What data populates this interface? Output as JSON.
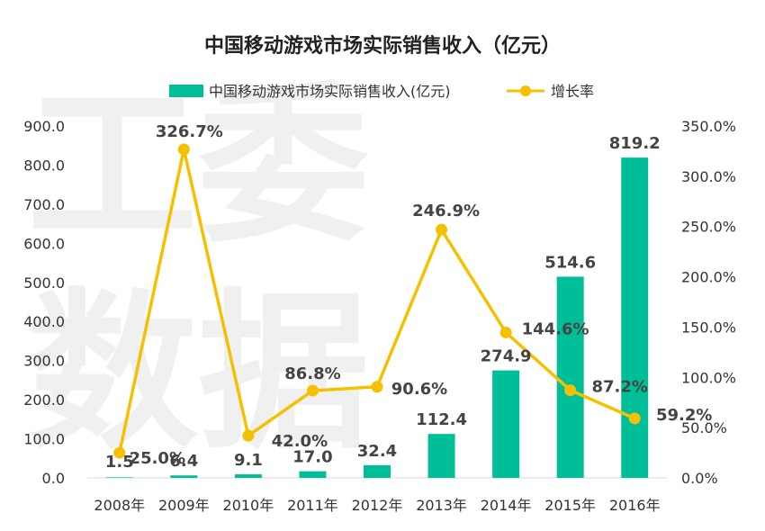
{
  "chart_data": {
    "type": "bar",
    "title": "中国移动游戏市场实际销售收入（亿元）",
    "categories": [
      "2008年",
      "2009年",
      "2010年",
      "2011年",
      "2012年",
      "2013年",
      "2014年",
      "2015年",
      "2016年"
    ],
    "series": [
      {
        "name": "中国移动游戏市场实际销售收入(亿元)",
        "type": "bar",
        "axis": "left",
        "color": "#00bf98",
        "values": [
          1.5,
          6.4,
          9.1,
          17.0,
          32.4,
          112.4,
          274.9,
          514.6,
          819.2
        ],
        "labels": [
          "1.5",
          "6.4",
          "9.1",
          "17.0",
          "32.4",
          "112.4",
          "274.9",
          "514.6",
          "819.2"
        ]
      },
      {
        "name": "增长率",
        "type": "line",
        "axis": "right",
        "color": "#f5c000",
        "values": [
          25.0,
          326.7,
          42.0,
          86.8,
          90.6,
          246.9,
          144.6,
          87.2,
          59.2
        ],
        "labels": [
          "25.0%",
          "326.7%",
          "42.0%",
          "86.8%",
          "90.6%",
          "246.9%",
          "144.6%",
          "87.2%",
          "59.2%"
        ]
      }
    ],
    "y_left": {
      "ylim": [
        0,
        900
      ],
      "ticks": [
        "0.0",
        "100.0",
        "200.0",
        "300.0",
        "400.0",
        "500.0",
        "600.0",
        "700.0",
        "800.0",
        "900.0"
      ]
    },
    "y_right": {
      "ylim": [
        0,
        350
      ],
      "ticks": [
        "0.0%",
        "50.0%",
        "100.0%",
        "150.0%",
        "200.0%",
        "250.0%",
        "300.0%",
        "350.0%"
      ]
    },
    "legend_position": "top-center",
    "grid": false
  },
  "watermark": [
    "工委",
    "数据"
  ]
}
